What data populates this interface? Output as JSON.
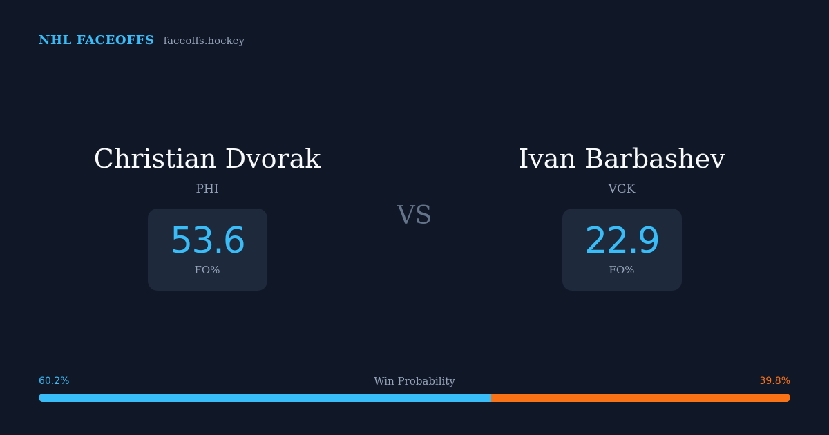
{
  "header": {
    "brand": "NHL FACEOFFS",
    "domain": "faceoffs.hockey"
  },
  "matchup": {
    "left": {
      "name": "Christian Dvorak",
      "team": "PHI",
      "fo_pct": "53.6",
      "stat_label": "FO%"
    },
    "vs_label": "VS",
    "right": {
      "name": "Ivan Barbashev",
      "team": "VGK",
      "fo_pct": "22.9",
      "stat_label": "FO%"
    }
  },
  "win_probability": {
    "title": "Win Probability",
    "left_label": "60.2%",
    "right_label": "39.8%",
    "left_value": 60.2,
    "right_value": 39.8
  },
  "colors": {
    "background": "#101828",
    "accent_left": "#38bdf8",
    "accent_right": "#f97316",
    "card": "#1e293b",
    "muted": "#94a3b8"
  }
}
